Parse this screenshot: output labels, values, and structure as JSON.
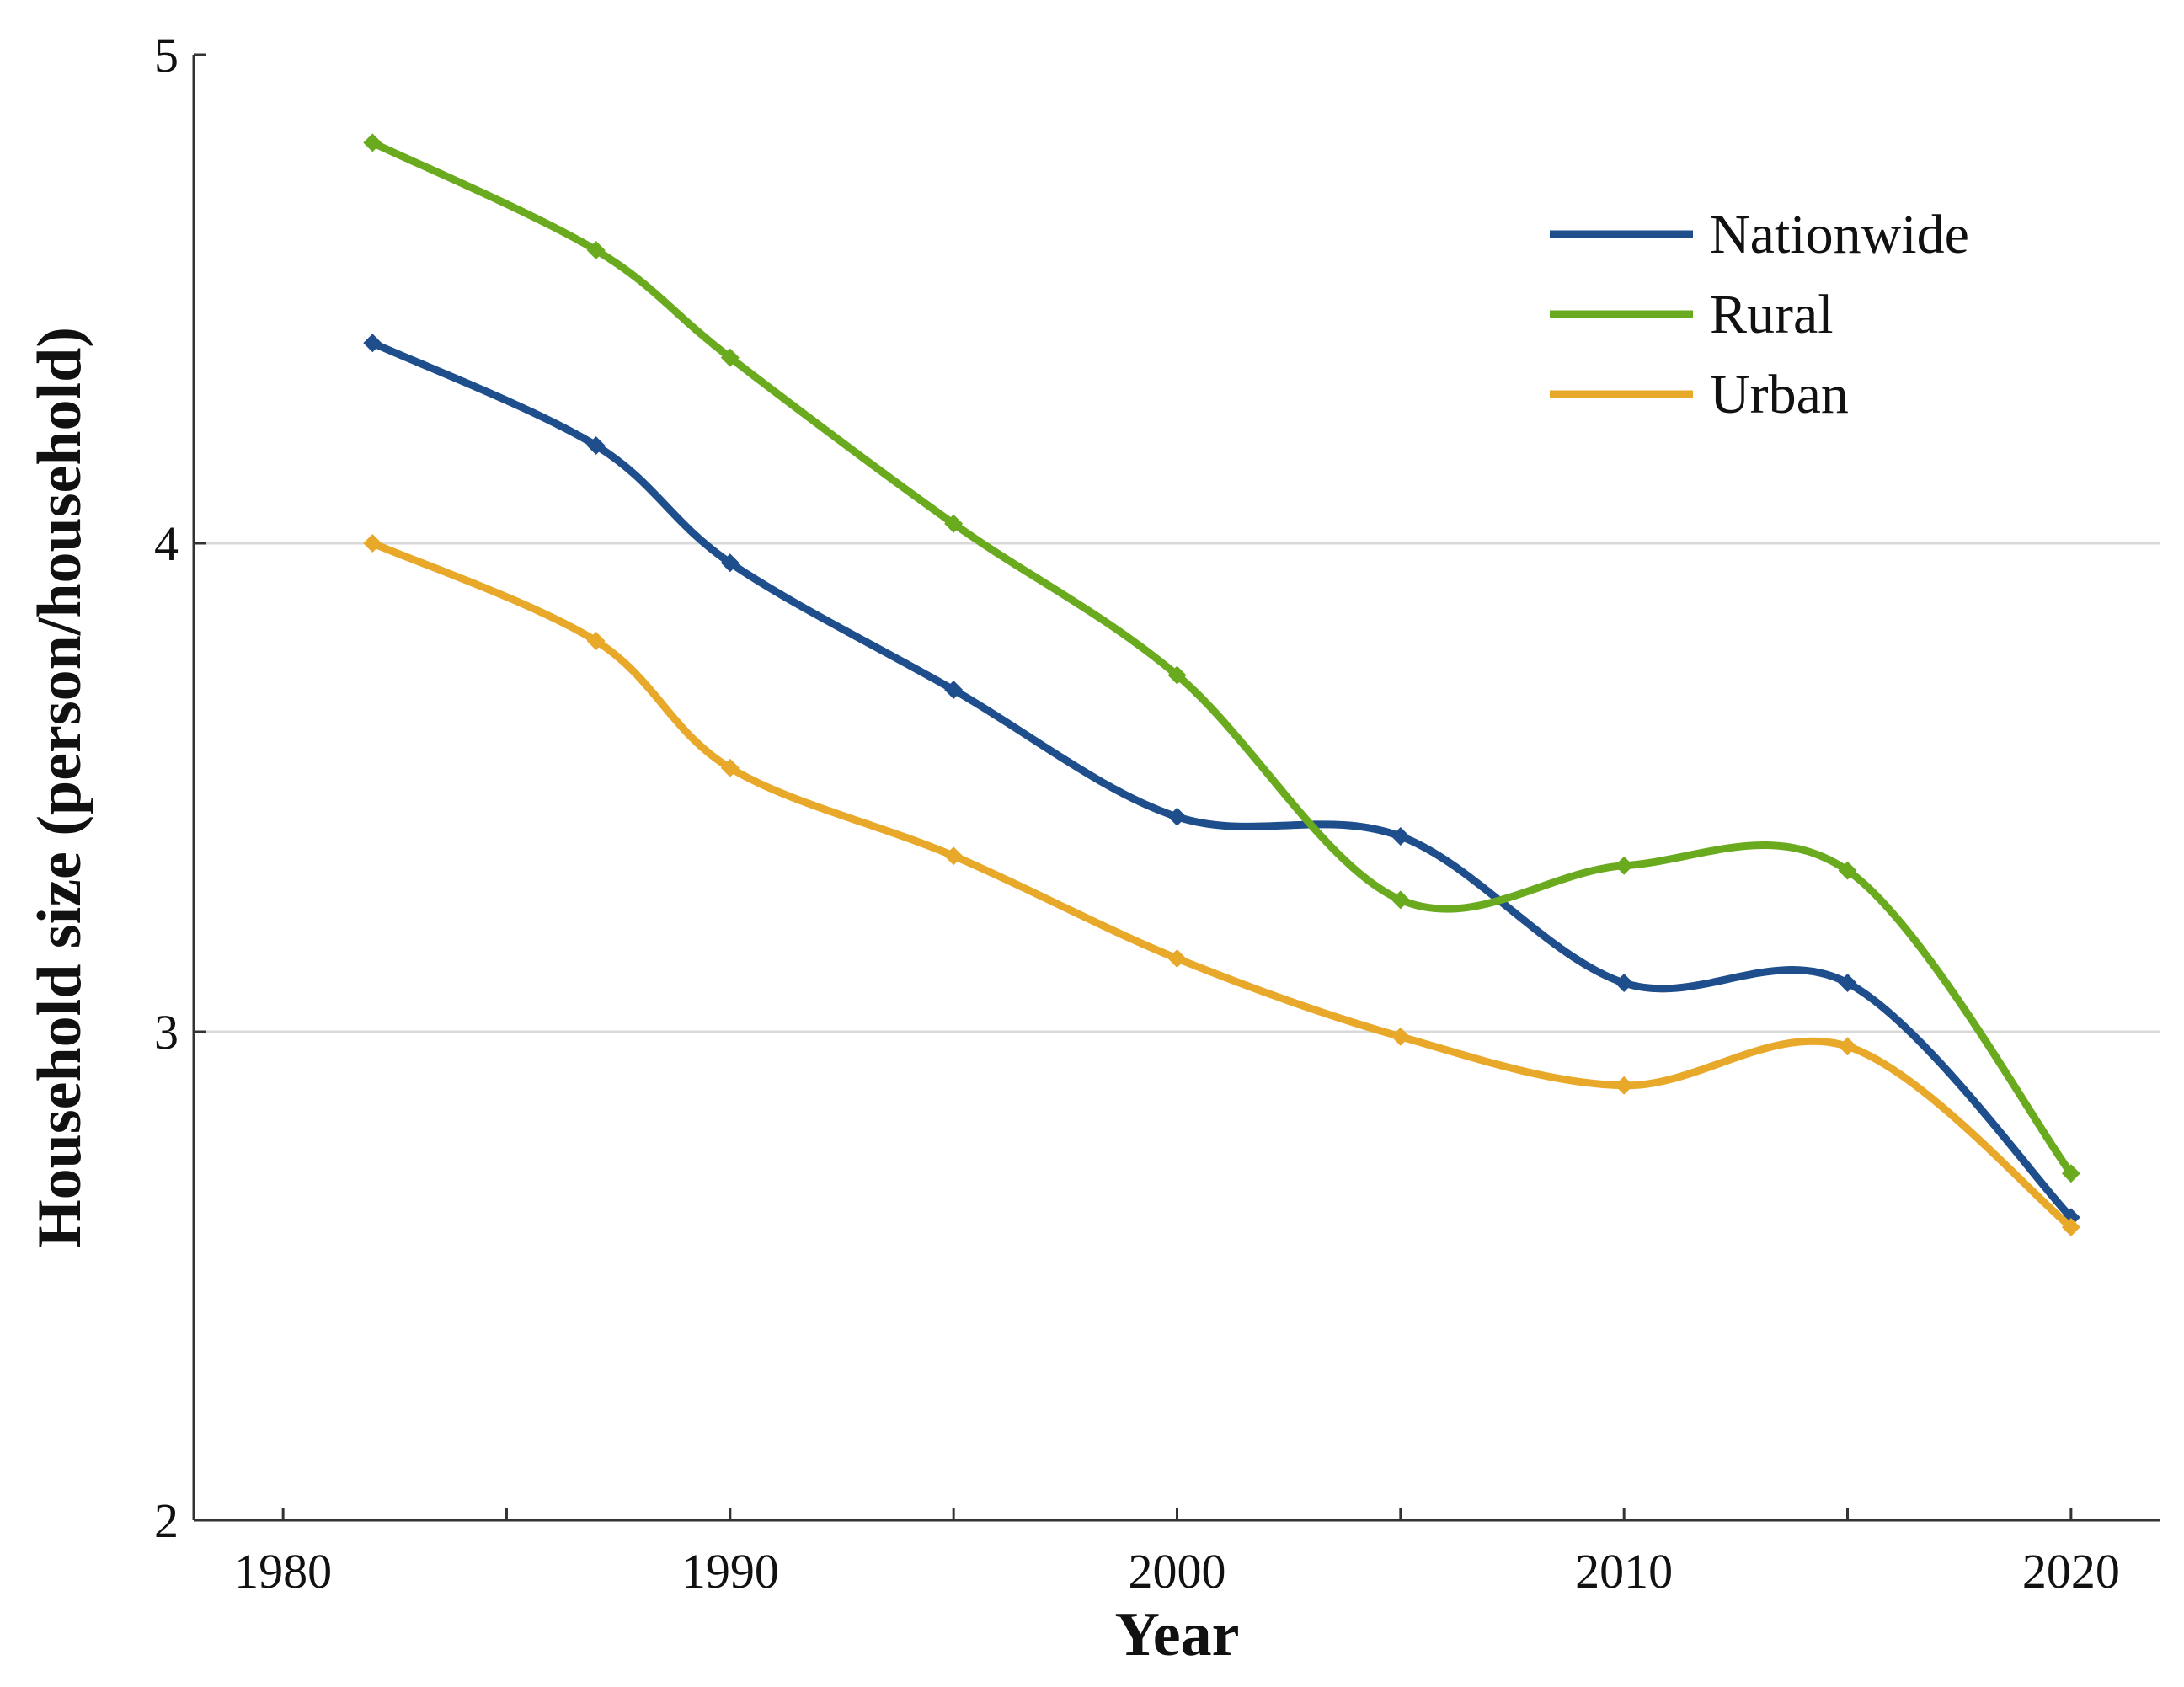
{
  "chart_data": {
    "type": "line",
    "title": "",
    "xlabel": "Year",
    "ylabel": "Household size (person/household)",
    "xlim": [
      1978,
      2022
    ],
    "ylim": [
      2,
      5
    ],
    "x_ticks": [
      1980,
      1990,
      2000,
      2010,
      2020
    ],
    "x_minor_ticks": [
      1985,
      1995,
      2005,
      2015
    ],
    "y_ticks": [
      2,
      3,
      4,
      5
    ],
    "grid": "horizontal",
    "legend": "top-right",
    "series": [
      {
        "name": "Nationwide",
        "color": "#1f4e8c",
        "marker": "diamond",
        "x": [
          1982,
          1987,
          1990,
          1995,
          2000,
          2005,
          2010,
          2015,
          2020
        ],
        "y": [
          4.41,
          4.2,
          3.96,
          3.7,
          3.44,
          3.4,
          3.1,
          3.1,
          2.62
        ]
      },
      {
        "name": "Rural",
        "color": "#6aaa1e",
        "marker": "diamond",
        "x": [
          1982,
          1987,
          1990,
          1995,
          2000,
          2005,
          2010,
          2015,
          2020
        ],
        "y": [
          4.82,
          4.6,
          4.38,
          4.04,
          3.73,
          3.27,
          3.34,
          3.33,
          2.71
        ]
      },
      {
        "name": "Urban",
        "color": "#e8a92b",
        "marker": "diamond",
        "x": [
          1982,
          1987,
          1990,
          1995,
          2000,
          2005,
          2010,
          2015,
          2020
        ],
        "y": [
          4.0,
          3.8,
          3.54,
          3.36,
          3.15,
          2.99,
          2.89,
          2.97,
          2.6
        ]
      }
    ]
  }
}
